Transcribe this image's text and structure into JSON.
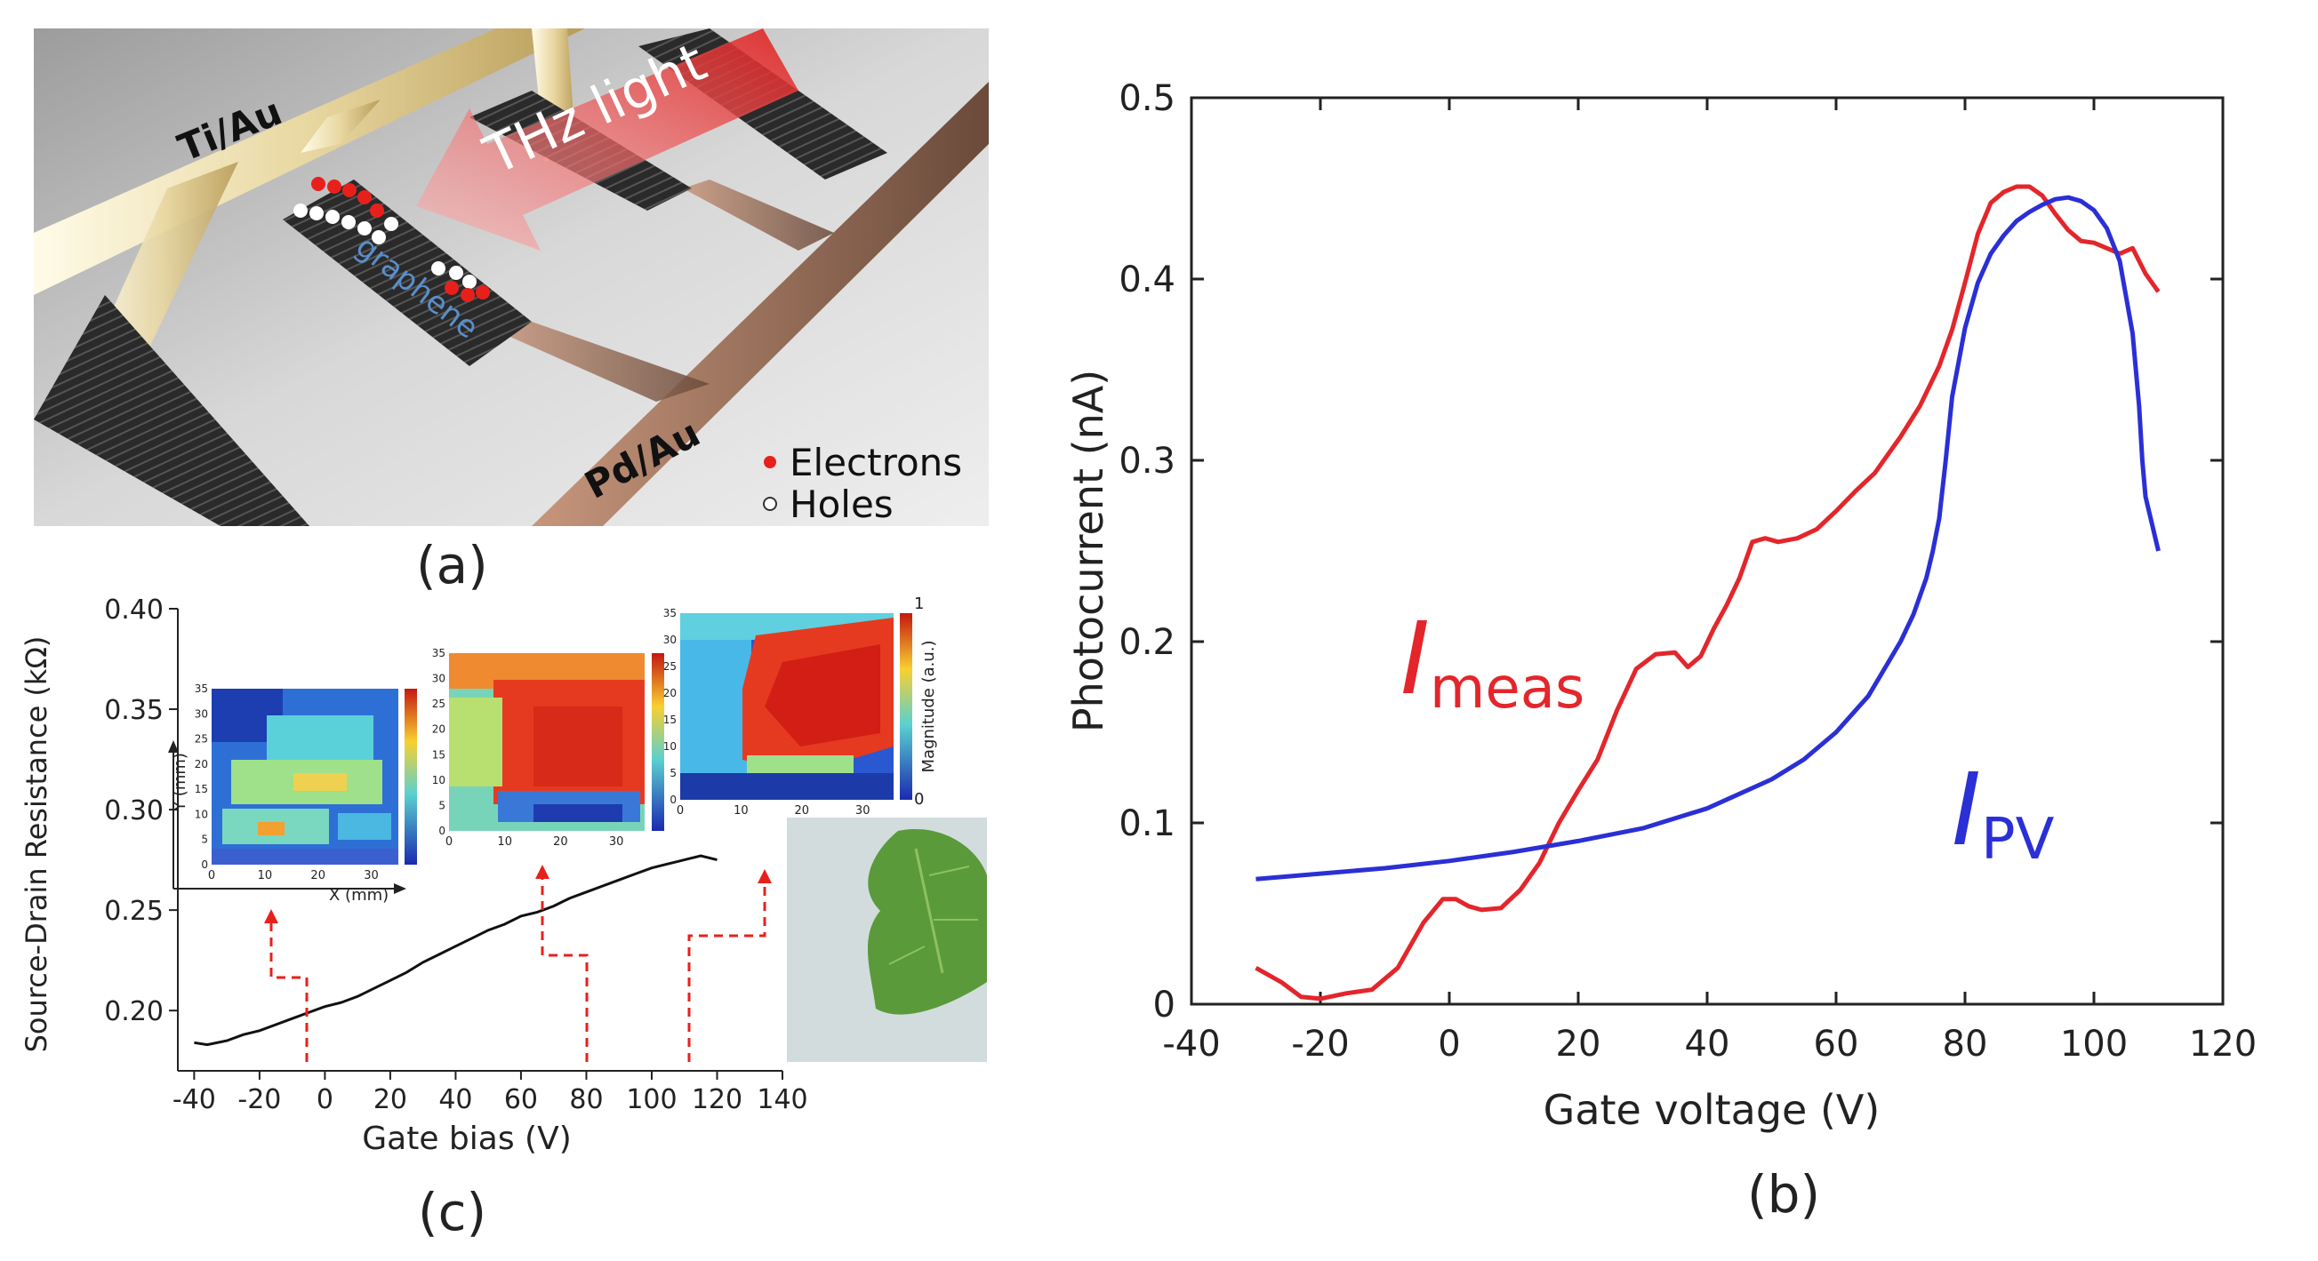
{
  "panel_a": {
    "label": "(a)",
    "electrode_top": "Ti/Au",
    "electrode_bottom": "Pd/Au",
    "light_label": "THz light",
    "material_label": "graphene",
    "legend": [
      "Electrons",
      "Holes"
    ],
    "colors": {
      "electron": "#e8201c",
      "hole": "#ffffff",
      "arrow": "#f04a4a"
    }
  },
  "panel_b": {
    "label": "(b)",
    "label_meas_main": "I",
    "label_meas_sub": "meas",
    "label_pv_main": "I",
    "label_pv_sub": "PV",
    "colors": {
      "meas": "#e3262b",
      "pv": "#2a2fd6"
    }
  },
  "panel_c": {
    "label": "(c)",
    "inset_x_label": "X (mm)",
    "inset_y_label": "Y (mm)",
    "colorbar_label": "Magnitude (a.u.)",
    "colorbar_ticks": [
      "1",
      "0"
    ],
    "map1_x_ticks": [
      "0",
      "10",
      "20",
      "30"
    ],
    "map1_y_ticks": [
      "35",
      "30",
      "25",
      "20",
      "15",
      "10",
      "5",
      "0"
    ],
    "map2_x_ticks": [
      "0",
      "10",
      "20",
      "30"
    ],
    "map2_y_ticks": [
      "35",
      "30",
      "25",
      "20",
      "15",
      "10",
      "5",
      "0"
    ],
    "map3_x_ticks": [
      "0",
      "10",
      "20",
      "30"
    ],
    "map3_y_ticks": [
      "35",
      "30",
      "25",
      "20",
      "15",
      "10",
      "5",
      "0"
    ]
  },
  "chart_data": [
    {
      "type": "line",
      "title": "",
      "xlabel": "Gate voltage (V)",
      "ylabel": "Photocurrent (nA)",
      "xlim": [
        -40,
        120
      ],
      "ylim": [
        0,
        0.5
      ],
      "xticks": [
        -40,
        -20,
        0,
        20,
        40,
        60,
        80,
        100,
        120
      ],
      "yticks": [
        0,
        0.1,
        0.2,
        0.3,
        0.4,
        0.5
      ],
      "series": [
        {
          "name": "I_meas",
          "x": [
            -30,
            -26,
            -23,
            -20,
            -16,
            -12,
            -8,
            -4,
            -1,
            1,
            3,
            5,
            8,
            11,
            14,
            17,
            20,
            23,
            26,
            29,
            32,
            35,
            37,
            39,
            41,
            43,
            45,
            47,
            49,
            51,
            54,
            57,
            60,
            63,
            66,
            70,
            73,
            76,
            78,
            80,
            82,
            84,
            86,
            88,
            90,
            92,
            94,
            96,
            98,
            100,
            102,
            104,
            106,
            108,
            110
          ],
          "y": [
            0.02,
            0.012,
            0.004,
            0.003,
            0.006,
            0.008,
            0.02,
            0.045,
            0.058,
            0.058,
            0.054,
            0.052,
            0.053,
            0.063,
            0.078,
            0.1,
            0.118,
            0.135,
            0.162,
            0.185,
            0.193,
            0.194,
            0.186,
            0.192,
            0.207,
            0.22,
            0.235,
            0.255,
            0.257,
            0.255,
            0.257,
            0.262,
            0.272,
            0.283,
            0.293,
            0.313,
            0.33,
            0.352,
            0.372,
            0.398,
            0.425,
            0.442,
            0.448,
            0.451,
            0.451,
            0.446,
            0.436,
            0.427,
            0.421,
            0.42,
            0.417,
            0.414,
            0.417,
            0.403,
            0.393
          ]
        },
        {
          "name": "I_PV",
          "x": [
            -30,
            -20,
            -10,
            0,
            10,
            20,
            30,
            40,
            50,
            55,
            60,
            65,
            70,
            72,
            74,
            75,
            76,
            77,
            78,
            80,
            82,
            84,
            86,
            88,
            90,
            92,
            94,
            96,
            98,
            100,
            102,
            104,
            106,
            107,
            107.5,
            108,
            110
          ],
          "y": [
            0.069,
            0.072,
            0.075,
            0.079,
            0.084,
            0.09,
            0.097,
            0.108,
            0.124,
            0.135,
            0.15,
            0.17,
            0.2,
            0.215,
            0.235,
            0.25,
            0.268,
            0.3,
            0.335,
            0.373,
            0.398,
            0.414,
            0.424,
            0.432,
            0.437,
            0.441,
            0.444,
            0.445,
            0.443,
            0.438,
            0.428,
            0.41,
            0.37,
            0.33,
            0.3,
            0.28,
            0.25
          ]
        }
      ]
    },
    {
      "type": "line",
      "title": "",
      "xlabel": "Gate bias (V)",
      "ylabel": "Source-Drain Resistance (kΩ)",
      "xlim": [
        -45,
        140
      ],
      "ylim": [
        0.17,
        0.4
      ],
      "xticks": [
        -40,
        -20,
        0,
        20,
        40,
        60,
        80,
        100,
        120,
        140
      ],
      "yticks": [
        0.2,
        0.25,
        0.3,
        0.35,
        0.4
      ],
      "ytick_labels": [
        "0.20",
        "0.25",
        "0.30",
        "0.35",
        "0.40"
      ],
      "series": [
        {
          "name": "resistance",
          "x": [
            -40,
            -36,
            -30,
            -25,
            -20,
            -15,
            -10,
            -5,
            0,
            5,
            10,
            15,
            20,
            25,
            30,
            35,
            40,
            45,
            50,
            55,
            60,
            65,
            70,
            75,
            80,
            85,
            90,
            95,
            100,
            105,
            110,
            115,
            120
          ],
          "y": [
            0.184,
            0.183,
            0.185,
            0.188,
            0.19,
            0.193,
            0.196,
            0.199,
            0.202,
            0.204,
            0.207,
            0.211,
            0.215,
            0.219,
            0.224,
            0.228,
            0.232,
            0.236,
            0.24,
            0.243,
            0.247,
            0.249,
            0.252,
            0.256,
            0.259,
            0.262,
            0.265,
            0.268,
            0.271,
            0.273,
            0.275,
            0.277,
            0.275
          ]
        }
      ]
    }
  ]
}
